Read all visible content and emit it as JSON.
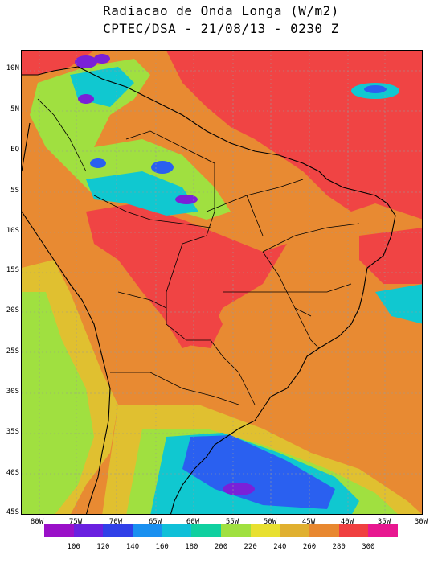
{
  "title_line1": "Radiacao de Onda Longa (W/m2)",
  "title_line2": "CPTEC/DSA - 21/08/13 - 0230 Z",
  "lat_labels": [
    "10N",
    "5N",
    "EQ",
    "5S",
    "10S",
    "15S",
    "20S",
    "25S",
    "30S",
    "35S",
    "40S",
    "45S"
  ],
  "lon_labels": [
    "80W",
    "75W",
    "70W",
    "65W",
    "60W",
    "55W",
    "50W",
    "45W",
    "40W",
    "35W",
    "30W"
  ],
  "colorbar": {
    "colors": [
      "#9a10c8",
      "#6a20e0",
      "#3040e8",
      "#1a90f0",
      "#10c0d8",
      "#10d0a0",
      "#a0e040",
      "#e8e030",
      "#e0b030",
      "#e88830",
      "#f04040",
      "#e81890"
    ],
    "labels": [
      "100",
      "120",
      "140",
      "160",
      "180",
      "200",
      "220",
      "240",
      "260",
      "280",
      "300"
    ]
  },
  "colors": {
    "ocean_high": "#f04444",
    "continent_mid": "#e88a32",
    "cloud_yellow": "#e0c030",
    "cloud_green": "#a0e040",
    "cloud_cyan": "#10c8d0",
    "cloud_blue": "#2a60f0",
    "cloud_purple": "#7a20d8",
    "border": "#000000",
    "grid": "#9a9a9a"
  }
}
